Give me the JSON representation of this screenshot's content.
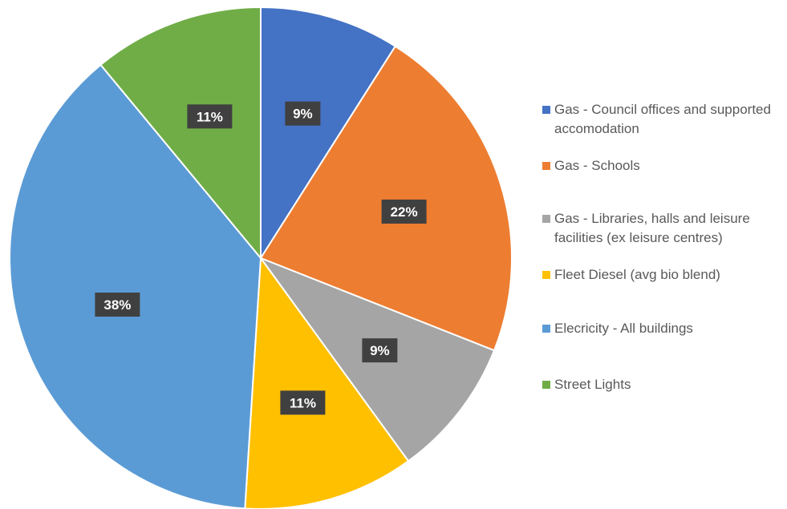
{
  "chart_data": {
    "type": "pie",
    "title": "",
    "legend_position": "right",
    "slices": [
      {
        "name": "Gas - Council offices and supported accomodation",
        "value": 9,
        "label": "9%",
        "color": "#4472C4"
      },
      {
        "name": "Gas - Schools",
        "value": 22,
        "label": "22%",
        "color": "#ED7D31"
      },
      {
        "name": "Gas - Libraries, halls and leisure facilities (ex leisure centres)",
        "value": 9,
        "label": "9%",
        "color": "#A5A5A5"
      },
      {
        "name": "Fleet Diesel (avg bio blend)",
        "value": 11,
        "label": "11%",
        "color": "#FFC000"
      },
      {
        "name": "Elecricity - All buildings",
        "value": 38,
        "label": "38%",
        "color": "#5B9BD5"
      },
      {
        "name": "Street Lights",
        "value": 11,
        "label": "11%",
        "color": "#70AD47"
      }
    ]
  }
}
